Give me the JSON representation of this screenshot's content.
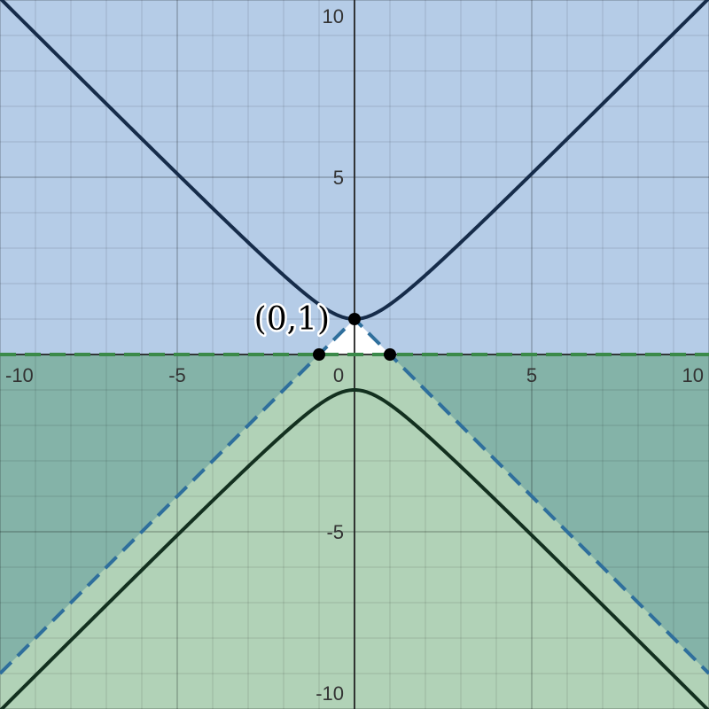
{
  "chart_data": {
    "type": "line",
    "xlim": [
      -10,
      10
    ],
    "ylim": [
      -10,
      10
    ],
    "grid": true,
    "minor_grid": true,
    "major_step": 5,
    "minor_step": 1,
    "x_ticks": [
      {
        "value": -10,
        "label": "-10"
      },
      {
        "value": -5,
        "label": "-5"
      },
      {
        "value": 0,
        "label": "0"
      },
      {
        "value": 5,
        "label": "5"
      },
      {
        "value": 10,
        "label": "10"
      }
    ],
    "y_ticks": [
      {
        "value": 10,
        "label": "10"
      },
      {
        "value": 5,
        "label": "5"
      },
      {
        "value": -5,
        "label": "-5"
      },
      {
        "value": -10,
        "label": "-10"
      }
    ],
    "regions": [
      {
        "id": "blue-region",
        "fill": "#5b8fc9",
        "opacity": 0.45,
        "description_inequality": "y > 1 - |x|"
      },
      {
        "id": "green-region",
        "fill": "#3d8f4a",
        "opacity": 0.4,
        "description_inequality": "y < 0"
      }
    ],
    "series": [
      {
        "id": "upper-hyperbola",
        "color": "#162c4a",
        "style": "solid",
        "equation": "y = sqrt(x^2 + 1)"
      },
      {
        "id": "lower-hyperbola",
        "color": "#13301f",
        "style": "solid",
        "equation": "y = -sqrt(x^2 + 1)"
      },
      {
        "id": "boundary-v",
        "color": "#2f6f9c",
        "style": "dashed",
        "equation": "y = 1 - |x|"
      },
      {
        "id": "boundary-y0",
        "color": "#3b8a4a",
        "style": "dashed",
        "equation": "y = 0"
      }
    ],
    "points": [
      {
        "x": 0,
        "y": 1,
        "label": "(0,1)"
      },
      {
        "x": -1,
        "y": 0,
        "label": ""
      },
      {
        "x": 1,
        "y": 0,
        "label": ""
      }
    ]
  }
}
